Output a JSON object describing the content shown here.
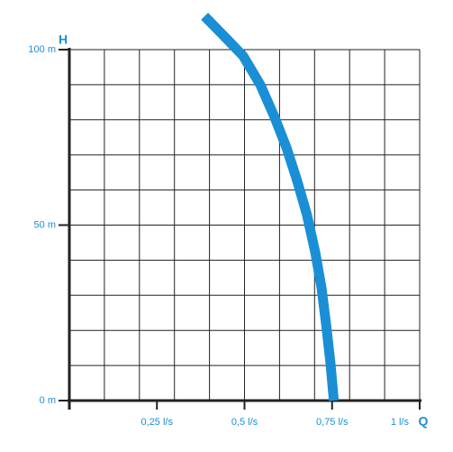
{
  "chart_data": {
    "type": "line",
    "x_label": "Q",
    "y_label": "H",
    "xlim": [
      0,
      1
    ],
    "ylim": [
      0,
      100
    ],
    "xticks": [
      {
        "value": 0.25,
        "label": "0,25 l/s"
      },
      {
        "value": 0.5,
        "label": "0,5 l/s"
      },
      {
        "value": 0.75,
        "label": "0,75 l/s"
      },
      {
        "value": 1,
        "label": "1 l/s"
      }
    ],
    "yticks": [
      {
        "value": 0,
        "label": "0 m"
      },
      {
        "value": 50,
        "label": "50 m"
      },
      {
        "value": 100,
        "label": "100 m"
      }
    ],
    "xgrid": [
      0.1,
      0.2,
      0.3,
      0.4,
      0.5,
      0.6,
      0.7,
      0.8,
      0.9,
      1
    ],
    "ygrid": [
      10,
      20,
      30,
      40,
      50,
      60,
      70,
      80,
      90,
      100
    ],
    "grid": true,
    "series": [
      {
        "color": "#1a8fd6",
        "x": [
          0.386,
          0.45,
          0.496,
          0.545,
          0.586,
          0.62,
          0.65,
          0.678,
          0.702,
          0.72,
          0.733,
          0.745,
          0.755
        ],
        "values": [
          109.5,
          103,
          98.2,
          90,
          80.7,
          72,
          62.7,
          53,
          42.2,
          32,
          21.6,
          11,
          0
        ]
      }
    ]
  }
}
